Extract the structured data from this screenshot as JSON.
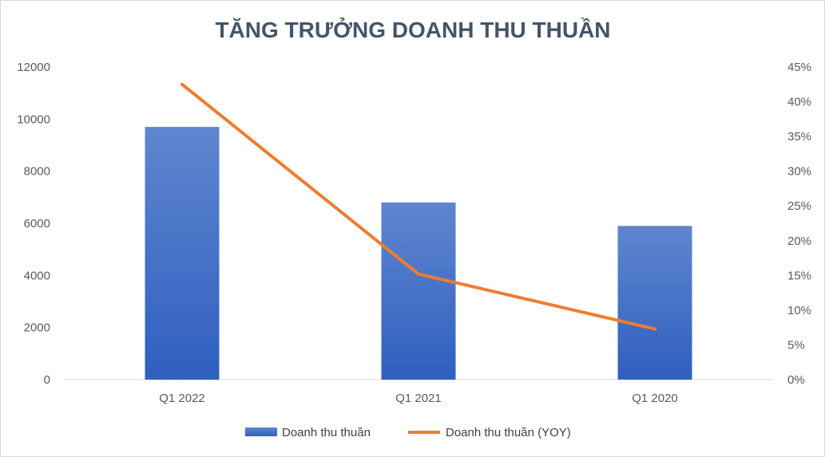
{
  "chart_data": {
    "type": "bar",
    "title": "TĂNG TRƯỞNG DOANH THU THUẦN",
    "categories": [
      "Q1 2022",
      "Q1 2021",
      "Q1 2020"
    ],
    "series": [
      {
        "name": "Doanh thu thuần",
        "type": "bar",
        "axis": "left",
        "values": [
          9700,
          6800,
          5900
        ],
        "color": "#4472c4"
      },
      {
        "name": "Doanh thu thuần (YOY)",
        "type": "line",
        "axis": "right",
        "values": [
          0.425,
          0.152,
          0.073
        ],
        "color": "#ed7d31"
      }
    ],
    "y_left": {
      "min": 0,
      "max": 12000,
      "ticks": [
        "0",
        "2000",
        "4000",
        "6000",
        "8000",
        "10000",
        "12000"
      ]
    },
    "y_right": {
      "min": 0,
      "max": 0.45,
      "ticks": [
        "0%",
        "5%",
        "10%",
        "15%",
        "20%",
        "25%",
        "30%",
        "35%",
        "40%",
        "45%"
      ]
    },
    "grid": false,
    "legend": "bottom"
  }
}
